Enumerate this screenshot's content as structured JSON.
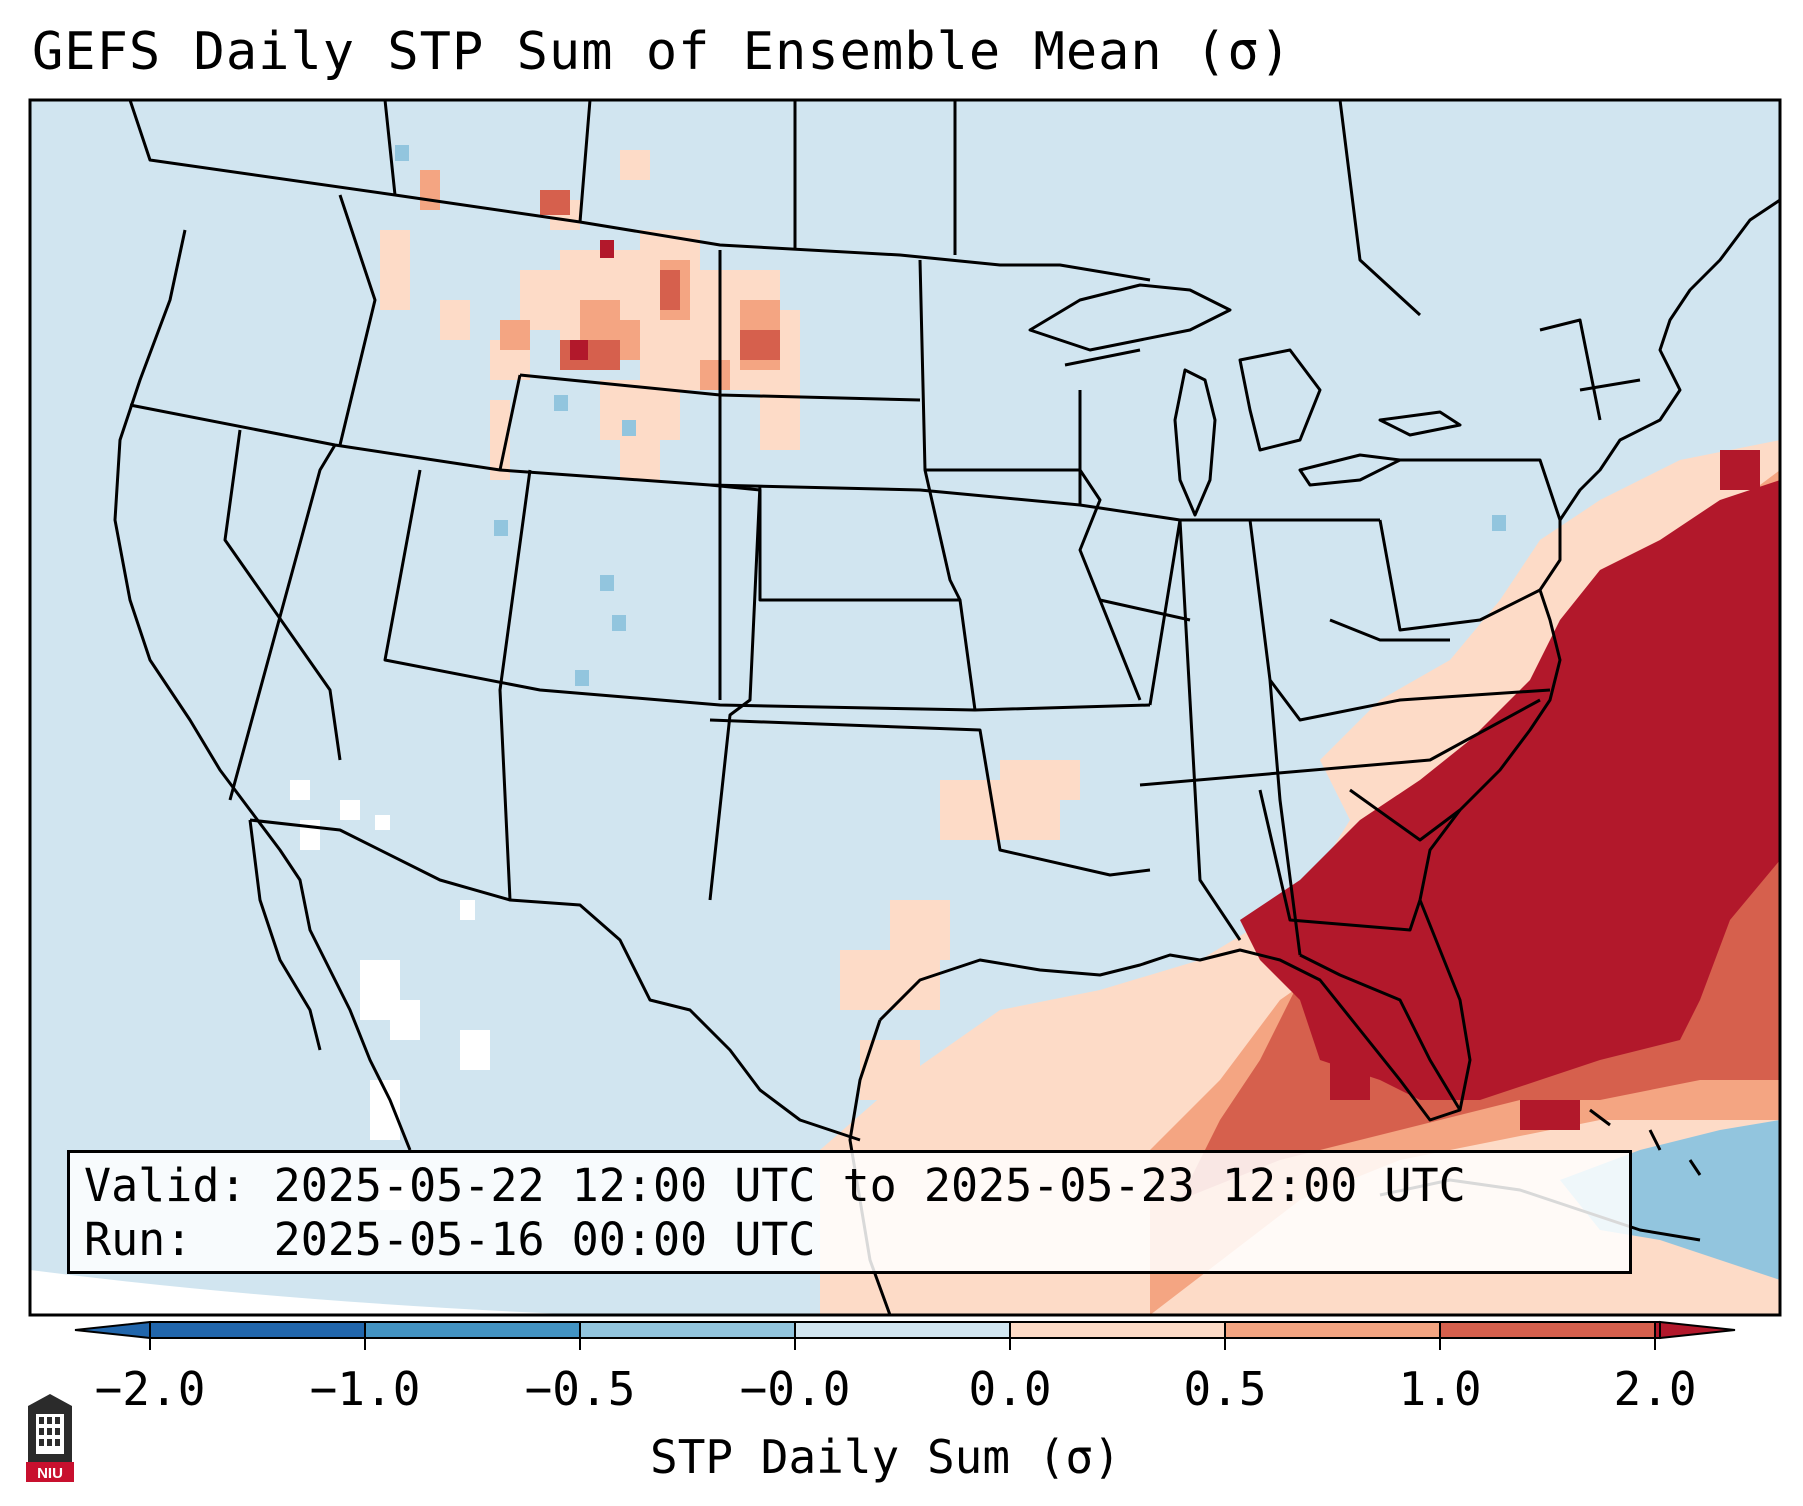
{
  "title": "GEFS Daily STP Sum of Ensemble Mean (σ)",
  "info": {
    "valid_line": "Valid: 2025-05-22 12:00 UTC to 2025-05-23 12:00 UTC",
    "run_line": "Run:   2025-05-16 00:00 UTC"
  },
  "colorbar": {
    "label": "STP Daily Sum (σ)",
    "ticks": [
      "−2.0",
      "−1.0",
      "−0.5",
      "−0.0",
      "0.0",
      "0.5",
      "1.0",
      "2.0"
    ],
    "bins": [
      "#2166ac",
      "#4393c3",
      "#92c5de",
      "#d1e5f0",
      "#f7f7f7",
      "#fddbc7",
      "#f4a582",
      "#d6604d",
      "#b2182b"
    ]
  },
  "map": {
    "projection": "Lambert Conformal CONUS",
    "background_color": "#d1e5f0",
    "units": "σ",
    "dominant_anomaly": "strong positive STP anomaly (>2.0 σ) over the Southeast US and western Atlantic"
  },
  "logo": {
    "text": "NIU",
    "icon": "niu-tower-icon"
  }
}
